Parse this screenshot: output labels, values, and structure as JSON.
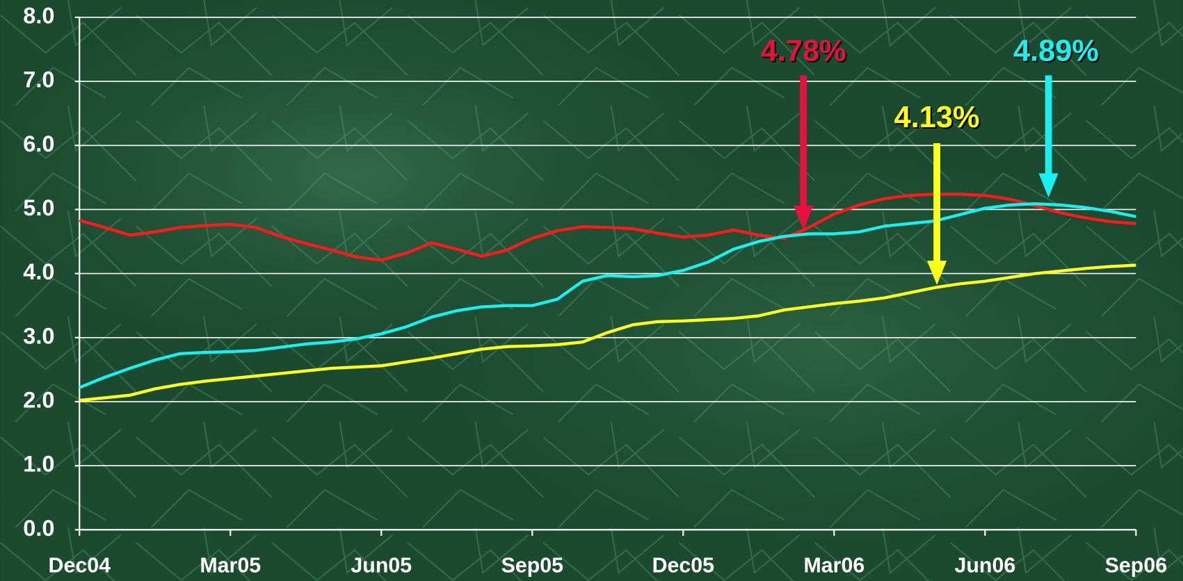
{
  "chart_data": {
    "type": "line",
    "categories": [
      "Dec04",
      null,
      null,
      null,
      null,
      null,
      "Mar05",
      null,
      null,
      null,
      null,
      null,
      "Jun05",
      null,
      null,
      null,
      null,
      null,
      "Sep05",
      null,
      null,
      null,
      null,
      null,
      "Dec05",
      null,
      null,
      null,
      null,
      null,
      "Mar06",
      null,
      null,
      null,
      null,
      null,
      "Jun06",
      null,
      null,
      null,
      null,
      null,
      "Sep06"
    ],
    "series": [
      {
        "color": "#ff1a1a",
        "values": [
          4.83,
          4.72,
          4.6,
          4.65,
          4.72,
          4.75,
          4.77,
          4.72,
          4.58,
          4.47,
          4.37,
          4.26,
          4.21,
          4.32,
          4.48,
          4.38,
          4.27,
          4.37,
          4.55,
          4.67,
          4.73,
          4.72,
          4.7,
          4.63,
          4.57,
          4.6,
          4.68,
          4.6,
          4.55,
          4.72,
          4.93,
          5.07,
          5.17,
          5.22,
          5.24,
          5.24,
          5.22,
          5.16,
          5.06,
          4.95,
          4.87,
          4.81,
          4.78
        ]
      },
      {
        "color": "#19f0f0",
        "values": [
          2.22,
          2.38,
          2.52,
          2.65,
          2.75,
          2.77,
          2.78,
          2.8,
          2.85,
          2.9,
          2.93,
          2.98,
          3.06,
          3.17,
          3.32,
          3.42,
          3.48,
          3.5,
          3.5,
          3.6,
          3.88,
          3.97,
          3.95,
          3.97,
          4.05,
          4.18,
          4.38,
          4.5,
          4.58,
          4.62,
          4.62,
          4.65,
          4.74,
          4.78,
          4.82,
          4.92,
          5.02,
          5.07,
          5.09,
          5.07,
          5.03,
          4.97,
          4.89
        ]
      },
      {
        "color": "#ffff19",
        "values": [
          2.02,
          2.06,
          2.1,
          2.2,
          2.27,
          2.32,
          2.36,
          2.4,
          2.44,
          2.48,
          2.52,
          2.54,
          2.56,
          2.62,
          2.68,
          2.75,
          2.82,
          2.86,
          2.87,
          2.89,
          2.93,
          3.08,
          3.2,
          3.25,
          3.26,
          3.28,
          3.3,
          3.34,
          3.43,
          3.48,
          3.53,
          3.57,
          3.62,
          3.7,
          3.78,
          3.84,
          3.88,
          3.94,
          4.0,
          4.04,
          4.08,
          4.11,
          4.13
        ]
      }
    ],
    "ylim": [
      0,
      8
    ],
    "yticks": [
      {
        "value": 0,
        "label": "0.0"
      },
      {
        "value": 1,
        "label": "1.0"
      },
      {
        "value": 2,
        "label": "2.0"
      },
      {
        "value": 3,
        "label": "3.0"
      },
      {
        "value": 4,
        "label": "4.0"
      },
      {
        "value": 5,
        "label": "5.0"
      },
      {
        "value": 6,
        "label": "6.0"
      },
      {
        "value": 7,
        "label": "7.0"
      },
      {
        "value": 8,
        "label": "8.0"
      }
    ],
    "grid": true,
    "annotations": [
      {
        "text": "4.78%",
        "color": "#e8103c"
      },
      {
        "text": "4.13%",
        "color": "#ffff19"
      },
      {
        "text": "4.89%",
        "color": "#19f0f0"
      }
    ]
  }
}
